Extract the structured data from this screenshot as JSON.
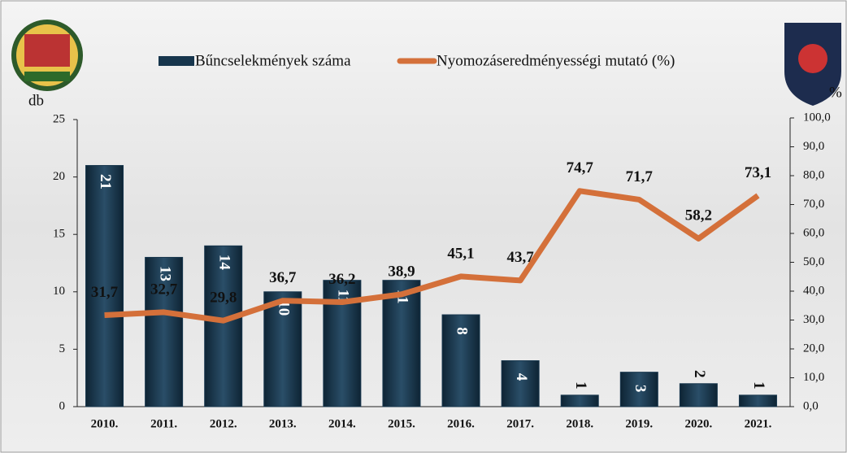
{
  "chart_data": {
    "type": "combo",
    "categories": [
      "2010.",
      "2011.",
      "2012.",
      "2013.",
      "2014.",
      "2015.",
      "2016.",
      "2017.",
      "2018.",
      "2019.",
      "2020.",
      "2021."
    ],
    "series": [
      {
        "name": "Bűncselekmények száma",
        "type": "bar",
        "color": "#17364d",
        "values": [
          21,
          13,
          14,
          10,
          11,
          11,
          8,
          4,
          1,
          3,
          2,
          1
        ]
      },
      {
        "name": "Nyomozáseredményességi mutató (%)",
        "type": "line",
        "color": "#d4703a",
        "axis": "y2",
        "values": [
          31.7,
          32.7,
          29.8,
          36.7,
          36.2,
          38.9,
          45.1,
          43.7,
          74.7,
          71.7,
          58.2,
          73.1
        ],
        "value_labels": [
          "31,7",
          "32,7",
          "29,8",
          "36,7",
          "36,2",
          "38,9",
          "45,1",
          "43,7",
          "74,7",
          "71,7",
          "58,2",
          "73,1"
        ]
      }
    ],
    "ylabel": "db",
    "y2label": "%",
    "ylim": [
      0,
      25
    ],
    "yticks": [
      0,
      5,
      10,
      15,
      20,
      25
    ],
    "y2lim": [
      0,
      100
    ],
    "y2ticks": [
      {
        "value": 0,
        "label": "0,0"
      },
      {
        "value": 10,
        "label": "10,0"
      },
      {
        "value": 20,
        "label": "20,0"
      },
      {
        "value": 30,
        "label": "30,0"
      },
      {
        "value": 40,
        "label": "40,0"
      },
      {
        "value": 50,
        "label": "50,0"
      },
      {
        "value": 60,
        "label": "60,0"
      },
      {
        "value": 70,
        "label": "70,0"
      },
      {
        "value": 80,
        "label": "80,0"
      },
      {
        "value": 90,
        "label": "90,0"
      },
      {
        "value": 100,
        "label": "100,0"
      }
    ]
  }
}
